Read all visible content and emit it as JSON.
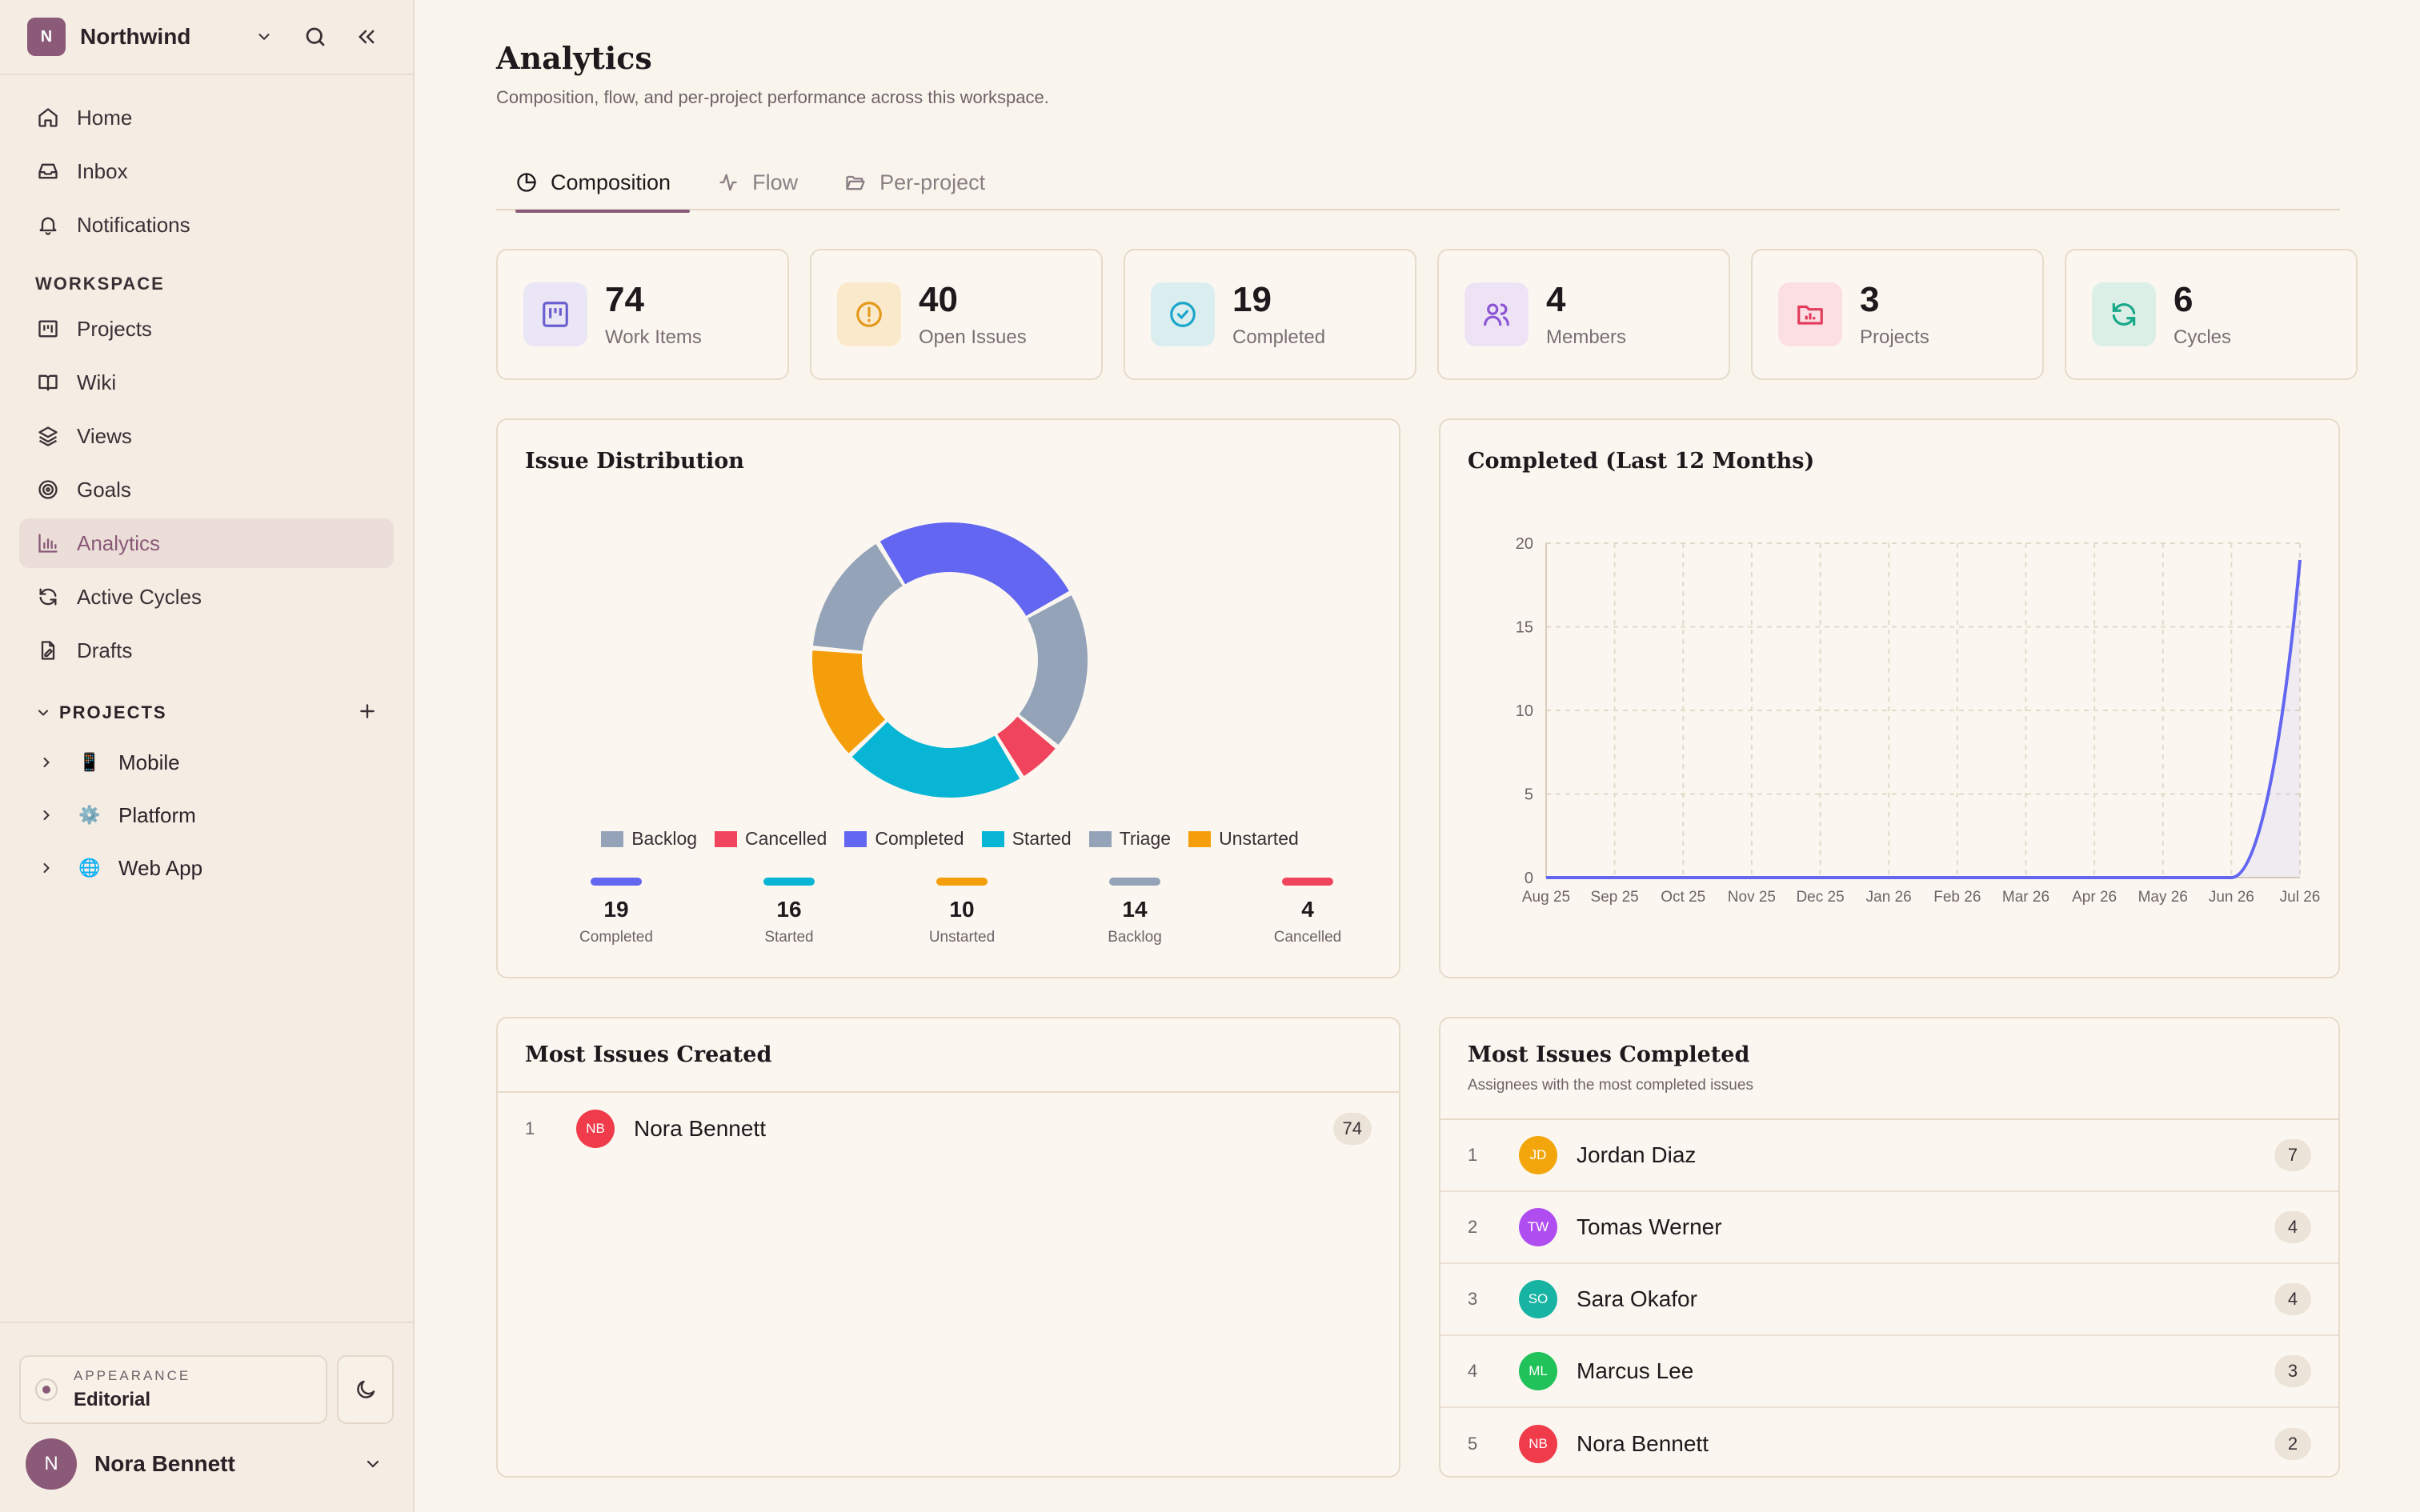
{
  "workspace": {
    "initial": "N",
    "name": "Northwind"
  },
  "nav": [
    {
      "label": "Home",
      "icon": "home-icon"
    },
    {
      "label": "Inbox",
      "icon": "inbox-icon"
    },
    {
      "label": "Notifications",
      "icon": "bell-icon"
    }
  ],
  "workspace_section": {
    "label": "WORKSPACE",
    "items": [
      {
        "label": "Projects",
        "icon": "projects-icon"
      },
      {
        "label": "Wiki",
        "icon": "book-icon"
      },
      {
        "label": "Views",
        "icon": "layers-icon"
      },
      {
        "label": "Goals",
        "icon": "target-icon"
      },
      {
        "label": "Analytics",
        "icon": "chart-icon",
        "active": true
      },
      {
        "label": "Active Cycles",
        "icon": "cycle-icon"
      },
      {
        "label": "Drafts",
        "icon": "draft-icon"
      }
    ]
  },
  "projects_section": {
    "label": "PROJECTS",
    "items": [
      {
        "label": "Mobile",
        "emoji": "📱"
      },
      {
        "label": "Platform",
        "emoji": "⚙️"
      },
      {
        "label": "Web App",
        "emoji": "🌐"
      }
    ]
  },
  "appearance": {
    "label": "APPEARANCE",
    "value": "Editorial"
  },
  "user": {
    "initial": "N",
    "name": "Nora Bennett"
  },
  "page": {
    "title": "Analytics",
    "subtitle": "Composition, flow, and per-project performance across this workspace."
  },
  "tabs": [
    {
      "label": "Composition",
      "active": true
    },
    {
      "label": "Flow"
    },
    {
      "label": "Per-project"
    }
  ],
  "stats": [
    {
      "value": "74",
      "label": "Work Items",
      "color": "#6a5fd0",
      "bg": "#ebe6f5"
    },
    {
      "value": "40",
      "label": "Open Issues",
      "color": "#e39a1a",
      "bg": "#fbe9cc"
    },
    {
      "value": "19",
      "label": "Completed",
      "color": "#1aa5c9",
      "bg": "#daeef0"
    },
    {
      "value": "4",
      "label": "Members",
      "color": "#8b55d6",
      "bg": "#ede3f5"
    },
    {
      "value": "3",
      "label": "Projects",
      "color": "#e43b5b",
      "bg": "#fbdfe2"
    },
    {
      "value": "6",
      "label": "Cycles",
      "color": "#19a88a",
      "bg": "#dcefe7"
    }
  ],
  "distribution": {
    "title": "Issue Distribution",
    "legend": [
      {
        "label": "Backlog",
        "color": "#94a3b8"
      },
      {
        "label": "Cancelled",
        "color": "#f0435c"
      },
      {
        "label": "Completed",
        "color": "#6366f1"
      },
      {
        "label": "Started",
        "color": "#08b5d4"
      },
      {
        "label": "Triage",
        "color": "#94a3b8"
      },
      {
        "label": "Unstarted",
        "color": "#f59e0b"
      }
    ],
    "summary": [
      {
        "value": "19",
        "label": "Completed",
        "color": "#6366f1"
      },
      {
        "value": "16",
        "label": "Started",
        "color": "#08b5d4"
      },
      {
        "value": "10",
        "label": "Unstarted",
        "color": "#f59e0b"
      },
      {
        "value": "14",
        "label": "Backlog",
        "color": "#94a3b8"
      },
      {
        "value": "4",
        "label": "Cancelled",
        "color": "#f0435c"
      }
    ]
  },
  "completed_chart": {
    "title": "Completed (Last 12 Months)"
  },
  "most_created": {
    "title": "Most Issues Created",
    "rows": [
      {
        "rank": "1",
        "initials": "NB",
        "name": "Nora Bennett",
        "count": "74",
        "color": "#ef3b4a"
      }
    ]
  },
  "most_completed": {
    "title": "Most Issues Completed",
    "subtitle": "Assignees with the most completed issues",
    "rows": [
      {
        "rank": "1",
        "initials": "JD",
        "name": "Jordan Diaz",
        "count": "7",
        "color": "#f2a60c"
      },
      {
        "rank": "2",
        "initials": "TW",
        "name": "Tomas Werner",
        "count": "4",
        "color": "#b04df0"
      },
      {
        "rank": "3",
        "initials": "SO",
        "name": "Sara Okafor",
        "count": "4",
        "color": "#17b3a3"
      },
      {
        "rank": "4",
        "initials": "ML",
        "name": "Marcus Lee",
        "count": "3",
        "color": "#21c25a"
      },
      {
        "rank": "5",
        "initials": "NB",
        "name": "Nora Bennett",
        "count": "2",
        "color": "#ef3b4a"
      }
    ]
  },
  "chart_data": [
    {
      "type": "pie",
      "title": "Issue Distribution",
      "categories": [
        "Completed",
        "Backlog",
        "Cancelled",
        "Started",
        "Unstarted",
        "Triage"
      ],
      "values": [
        19,
        14,
        4,
        16,
        10,
        11
      ],
      "colors": [
        "#6366f1",
        "#94a3b8",
        "#f0435c",
        "#08b5d4",
        "#f59e0b",
        "#94a3b8"
      ]
    },
    {
      "type": "area",
      "title": "Completed (Last 12 Months)",
      "categories": [
        "Aug 25",
        "Sep 25",
        "Oct 25",
        "Nov 25",
        "Dec 25",
        "Jan 26",
        "Feb 26",
        "Mar 26",
        "Apr 26",
        "May 26",
        "Jun 26",
        "Jul 26"
      ],
      "values": [
        0,
        0,
        0,
        0,
        0,
        0,
        0,
        0,
        0,
        0,
        0,
        19
      ],
      "ylim": [
        0,
        20
      ],
      "yticks": [
        "0",
        "5",
        "10",
        "15",
        "20"
      ],
      "grid": true,
      "color": "#6366f1"
    }
  ]
}
